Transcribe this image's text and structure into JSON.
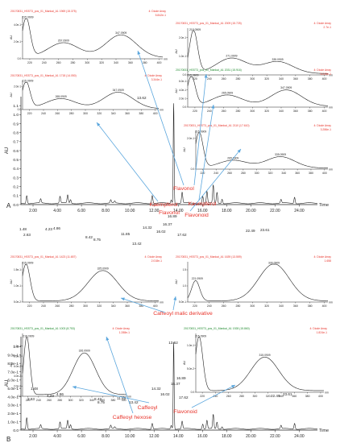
{
  "chart_data": [
    {
      "type": "line",
      "panel": "A",
      "xlabel": "Time",
      "ylabel": "AU",
      "xlim": [
        1.0,
        25.5
      ],
      "ylim": [
        0.0,
        1.2
      ],
      "xticks": [
        "2.00",
        "4.00",
        "6.00",
        "8.00",
        "10.00",
        "12.00",
        "14.00",
        "16.00",
        "18.00",
        "20.00",
        "22.00",
        "24.00"
      ],
      "yticks": [
        "0.0",
        "0.1",
        "0.2",
        "0.3",
        "0.4",
        "0.5",
        "0.6",
        "0.7",
        "0.8",
        "0.9",
        "1.0",
        "1.1"
      ],
      "peak_labels": [
        "1.48",
        "2.63",
        "4.23",
        "4.86",
        "8.42",
        "8.75",
        "11.85",
        "13.42",
        "13.62",
        "14.32",
        "16.02",
        "16.37",
        "16.89",
        "17.62",
        "22.49",
        "23.61"
      ],
      "annotations": [
        "Flavonol",
        "Kaempferol",
        "Kaempferol",
        "Flavonol",
        "Flavonoid"
      ],
      "insets": [
        {
          "header": "20170831_HSST3_pos_01_Mankai_A1 1969 (15.375)",
          "detector": "4: Diode Array",
          "scale": "5.842e-1",
          "yticks": [
            "0.0",
            "2.0e-1",
            "4.0e-1"
          ],
          "peaks": [
            "215.0909",
            "267.0909",
            "347.0909"
          ]
        },
        {
          "header": "20170831_HSST3_pos_01_Mankai_A1 2009 (15.725)",
          "detector": "4: Diode Array",
          "scale": "2.7e-1",
          "yticks": [
            "0.0",
            "1.0e-1",
            "2.0e-1"
          ],
          "peaks": [
            "218.0909",
            "271.0909",
            "335.0909"
          ]
        },
        {
          "header": "20170831_HSST3_pos_01_Mankai_A1 1718 (14.050)",
          "detector": "4: Diode Array",
          "scale": "3.344e-1",
          "yticks": [
            "0.0",
            "2.0e-1"
          ],
          "peaks": [
            "215.0909",
            "265.0909",
            "347.0909"
          ]
        },
        {
          "header": "20170831_HSST3_pos_01_Mankai_A1 2031 (15.916)",
          "detector": "4: Diode Array",
          "scale": "6.225e-1",
          "yticks": [
            "0.0",
            "2.0e-1",
            "4.0e-1",
            "6.0e-1"
          ],
          "peaks": [
            "215.0909",
            "265.0909",
            "347.0909"
          ]
        },
        {
          "header": "20170831_HSST3_pos_01_Mankai_A1 2110 (17.610)",
          "detector": "4: Diode Array",
          "scale": "3.286e-1",
          "yticks": [
            "0.0",
            "2.0e-1"
          ],
          "peaks": [
            "215.0909",
            "265.0909",
            "335.0909"
          ]
        }
      ]
    },
    {
      "type": "line",
      "panel": "B",
      "xlabel": "Time",
      "ylabel": "AU",
      "xlim": [
        1.0,
        25.5
      ],
      "ylim": [
        0.0,
        1.12
      ],
      "xticks": [
        "2.00",
        "4.00",
        "6.00",
        "8.00",
        "10.00",
        "12.00",
        "14.00",
        "16.00",
        "18.00",
        "20.00",
        "22.00",
        "24.00"
      ],
      "yticks": [
        "0.0",
        "1.0e-1",
        "2.0e-1",
        "3.0e-1",
        "4.0e-1",
        "5.0e-1",
        "6.0e-1",
        "7.0e-1",
        "8.0e-1",
        "9.0e-1",
        "1.0"
      ],
      "peak_labels": [
        "1.48",
        "2.63",
        "4.23",
        "4.86",
        "8.42",
        "8.75",
        "11.85",
        "13.42",
        "13.62",
        "14.32",
        "16.02",
        "16.37",
        "16.89",
        "17.62",
        "22.49",
        "23.61"
      ],
      "annotations": [
        "Caffeoyl malic derivative",
        "Caffeoyl",
        "Caffeoyl hexose",
        "Flavonoid"
      ],
      "insets": [
        {
          "header": "20170831_HSST3_pos_01_Mankai_A1 1423 (11.657)",
          "detector": "4: Diode Array",
          "scale": "2.018e-1",
          "yticks": [
            "5.0e-2",
            "1.0e-1",
            "1.5e-1"
          ],
          "peaks": [
            "215.0909",
            "325.0909"
          ]
        },
        {
          "header": "20170831_HSST3_pos_01_Mankai_A1 1639 (13.559)",
          "detector": "4: Diode Array",
          "scale": "1.658",
          "yticks": [
            "5.0e-1",
            "1.0",
            "1.5"
          ],
          "peaks": [
            "221.0909",
            "330.0909"
          ]
        },
        {
          "header": "20170831_HSST3_pos_01_Mankai_A1 1003 (8.753)",
          "detector": "4: Diode Array",
          "scale": "1.288e-1",
          "yticks": [
            "0.0",
            "2.0e-2",
            "4.0e-2",
            "6.0e-2",
            "8.0e-2",
            "1.0e-1"
          ],
          "peaks": [
            "218.0909",
            "326.0909"
          ]
        },
        {
          "header": "20170831_HSST3_pos_01_Mankai_A1 1928 (15.860)",
          "detector": "4: Diode Array",
          "scale": "1.824e-1",
          "yticks": [
            "0.0",
            "5.0e-2",
            "1.0e-1"
          ],
          "peaks": [
            "215.0909",
            "315.0909"
          ]
        }
      ]
    }
  ],
  "panel_labels": [
    "A",
    "B"
  ],
  "inset_xticks": [
    "220",
    "240",
    "260",
    "280",
    "300",
    "320",
    "340",
    "360",
    "380",
    "400"
  ],
  "inset_unit": "nm",
  "inset_ylabel": "AU",
  "colors": {
    "trace": "#222222",
    "red": "#e8332a",
    "green": "#1f8a2e",
    "arrow": "#5aa6dd",
    "axis": "#222222"
  }
}
